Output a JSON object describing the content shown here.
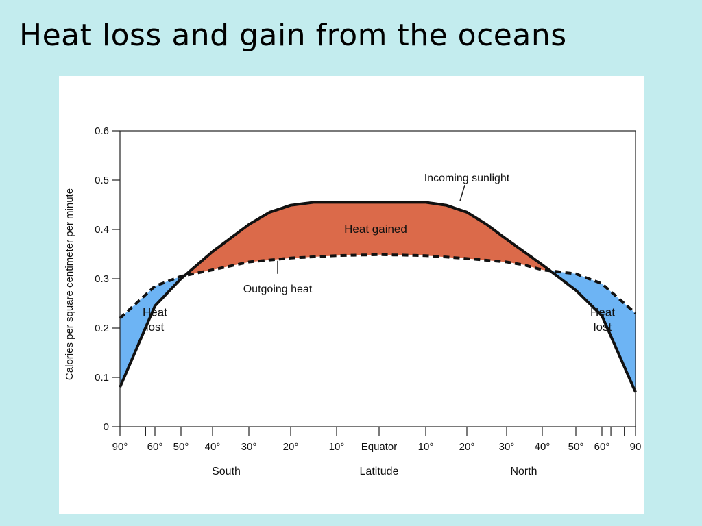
{
  "slide": {
    "title": "Heat loss and gain from the oceans"
  },
  "chart_data": {
    "type": "line",
    "title": "",
    "xlabel": "Latitude",
    "ylabel": "Calories per square centimeter per minute",
    "x_direction_labels": {
      "south": "South",
      "north": "North"
    },
    "x_ticks": [
      "90°",
      "60°",
      "50°",
      "40°",
      "30°",
      "20°",
      "10°",
      "Equator",
      "10°",
      "20°",
      "30°",
      "40°",
      "50°",
      "60°",
      "90"
    ],
    "y_ticks": [
      "0",
      "0.1",
      "0.2",
      "0.3",
      "0.4",
      "0.5",
      "0.6"
    ],
    "ylim": [
      0,
      0.6
    ],
    "series": [
      {
        "name": "Incoming sunlight",
        "style": "solid",
        "x": [
          -90,
          -30,
          -25,
          -20,
          -15,
          -10,
          0,
          10,
          15,
          20,
          25,
          30,
          90
        ],
        "values": [
          0.08,
          0.41,
          0.435,
          0.449,
          0.455,
          0.455,
          0.455,
          0.455,
          0.449,
          0.435,
          0.41,
          0.38,
          0.07
        ]
      },
      {
        "name": "Outgoing heat",
        "style": "dashed",
        "x": [
          -90,
          -60,
          -50,
          -40,
          -35,
          -30,
          -20,
          -10,
          0,
          10,
          20,
          30,
          35,
          40,
          50,
          60,
          90
        ],
        "values": [
          0.22,
          0.285,
          0.305,
          0.318,
          0.326,
          0.334,
          0.342,
          0.347,
          0.349,
          0.347,
          0.341,
          0.334,
          0.328,
          0.318,
          0.31,
          0.29,
          0.23
        ]
      }
    ],
    "annotations": {
      "heat_gained": "Heat gained",
      "heat_lost_line1": "Heat",
      "heat_lost_line2": "lost"
    },
    "colors": {
      "heat_gained": "#db6a4a",
      "heat_lost": "#6db4f4",
      "line": "#111111"
    },
    "grid": false
  }
}
